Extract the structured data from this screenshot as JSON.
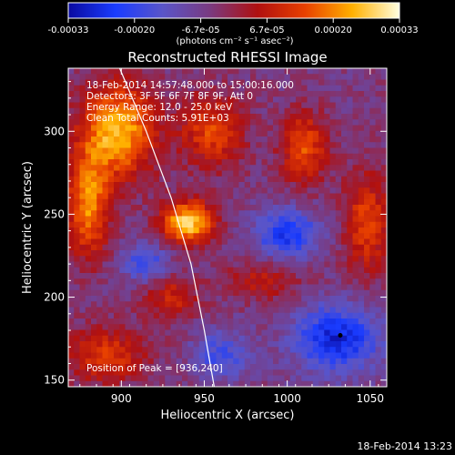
{
  "chart_data": {
    "type": "heatmap",
    "title": "Reconstructed RHESSI Image",
    "xlabel": "Heliocentric X (arcsec)",
    "ylabel": "Heliocentric Y (arcsec)",
    "xlim": [
      868,
      1060
    ],
    "ylim": [
      146,
      338
    ],
    "xticks": [
      900,
      950,
      1000,
      1050
    ],
    "yticks": [
      150,
      200,
      250,
      300
    ],
    "colorbar": {
      "label": "(photons cm⁻² s⁻¹ asec⁻²)",
      "range": [
        -0.00033,
        0.00033
      ],
      "ticks": [
        "-0.00033",
        "-0.00020",
        "-6.7e-05",
        "6.7e-05",
        "0.00020",
        "0.00033"
      ],
      "colors": [
        "#0a0aa0",
        "#1a3cff",
        "#5a55c8",
        "#7a3a80",
        "#b01010",
        "#e84000",
        "#ffb000",
        "#ffffe0"
      ]
    },
    "info_lines": [
      "18-Feb-2014 14:57:48.000 to 15:00:16.000",
      "Detectors: 3F 5F 6F 7F 8F 9F, Att 0",
      "Energy Range: 12.0 - 25.0 keV",
      "Clean    Total Counts: 5.91E+03"
    ],
    "peak_label": "Position of Peak = [936,240]",
    "peak": [
      936,
      240
    ],
    "timestamp": "18-Feb-2014 13:23",
    "limb_curve": [
      [
        899,
        338
      ],
      [
        915,
        300
      ],
      [
        930,
        260
      ],
      [
        942,
        220
      ],
      [
        950,
        180
      ],
      [
        956,
        146
      ]
    ],
    "blobs": [
      {
        "x": 940,
        "y": 245,
        "sx": 11,
        "sy": 9,
        "amp": 1.0
      },
      {
        "x": 898,
        "y": 300,
        "sx": 16,
        "sy": 20,
        "amp": 0.9
      },
      {
        "x": 880,
        "y": 255,
        "sx": 9,
        "sy": 22,
        "amp": 0.75
      },
      {
        "x": 955,
        "y": 300,
        "sx": 14,
        "sy": 16,
        "amp": 0.55
      },
      {
        "x": 1010,
        "y": 290,
        "sx": 10,
        "sy": 15,
        "amp": 0.6
      },
      {
        "x": 1048,
        "y": 245,
        "sx": 10,
        "sy": 22,
        "amp": 0.55
      },
      {
        "x": 890,
        "y": 165,
        "sx": 18,
        "sy": 12,
        "amp": 0.5
      },
      {
        "x": 930,
        "y": 200,
        "sx": 12,
        "sy": 10,
        "amp": 0.4
      },
      {
        "x": 985,
        "y": 210,
        "sx": 16,
        "sy": 8,
        "amp": 0.35
      },
      {
        "x": 1000,
        "y": 238,
        "sx": 14,
        "sy": 10,
        "amp": -0.6
      },
      {
        "x": 1030,
        "y": 175,
        "sx": 18,
        "sy": 14,
        "amp": -0.7
      },
      {
        "x": 915,
        "y": 220,
        "sx": 10,
        "sy": 8,
        "amp": -0.45
      },
      {
        "x": 960,
        "y": 165,
        "sx": 12,
        "sy": 10,
        "amp": -0.4
      }
    ]
  }
}
